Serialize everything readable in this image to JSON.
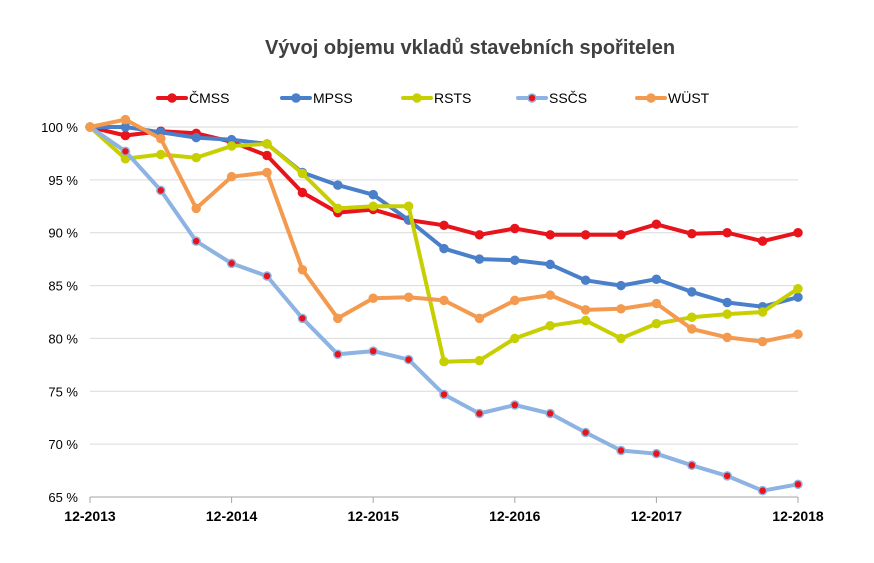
{
  "chart_data": {
    "type": "line",
    "title": "Vývoj objemu vkladů stavebních spořitelen",
    "xlabel": "",
    "ylabel": "",
    "x_tick_labels": [
      "12-2013",
      "12-2014",
      "12-2015",
      "12-2016",
      "12-2017",
      "12-2018"
    ],
    "y_tick_labels": [
      "65 %",
      "70 %",
      "75 %",
      "80 %",
      "85 %",
      "90 %",
      "95 %",
      "100 %"
    ],
    "y_ticks": [
      65,
      70,
      75,
      80,
      85,
      90,
      95,
      100
    ],
    "ylim": [
      65,
      100
    ],
    "x_count": 21,
    "grid": true,
    "legend_position": "top",
    "series": [
      {
        "name": "ČMSS",
        "color": "#e8141c",
        "marker_fill": "#e8141c",
        "values": [
          100,
          99.2,
          99.6,
          99.4,
          98.6,
          97.3,
          93.8,
          91.9,
          92.2,
          91.2,
          90.7,
          89.8,
          90.4,
          89.8,
          89.8,
          89.8,
          90.8,
          89.9,
          90.0,
          89.2,
          90.0
        ]
      },
      {
        "name": "MPSS",
        "color": "#4a7fc9",
        "marker_fill": "#4a7fc9",
        "values": [
          100,
          100.0,
          99.5,
          99.0,
          98.8,
          98.4,
          95.7,
          94.5,
          93.6,
          91.2,
          88.5,
          87.5,
          87.4,
          87.0,
          85.5,
          85.0,
          85.6,
          84.4,
          83.4,
          83.0,
          83.9
        ]
      },
      {
        "name": "RSTS",
        "color": "#c8cf00",
        "marker_fill": "#c8cf00",
        "values": [
          100,
          97.0,
          97.4,
          97.1,
          98.2,
          98.4,
          95.6,
          92.3,
          92.5,
          92.5,
          77.8,
          77.9,
          80.0,
          81.2,
          81.7,
          80.0,
          81.4,
          82.0,
          82.3,
          82.5,
          84.7
        ]
      },
      {
        "name": "SSČS",
        "color": "#8db3e2",
        "marker_fill": "#e8141c",
        "values": [
          100,
          97.7,
          94.0,
          89.2,
          87.1,
          85.9,
          81.9,
          78.5,
          78.8,
          78.0,
          74.7,
          72.9,
          73.7,
          72.9,
          71.1,
          69.4,
          69.1,
          68.0,
          67.0,
          65.6,
          66.2
        ]
      },
      {
        "name": "WÜST",
        "color": "#f39a4e",
        "marker_fill": "#f39a4e",
        "values": [
          100,
          100.7,
          98.9,
          92.3,
          95.3,
          95.7,
          86.5,
          81.9,
          83.8,
          83.9,
          83.6,
          81.9,
          83.6,
          84.1,
          82.7,
          82.8,
          83.3,
          80.9,
          80.1,
          79.7,
          80.4
        ]
      }
    ]
  }
}
